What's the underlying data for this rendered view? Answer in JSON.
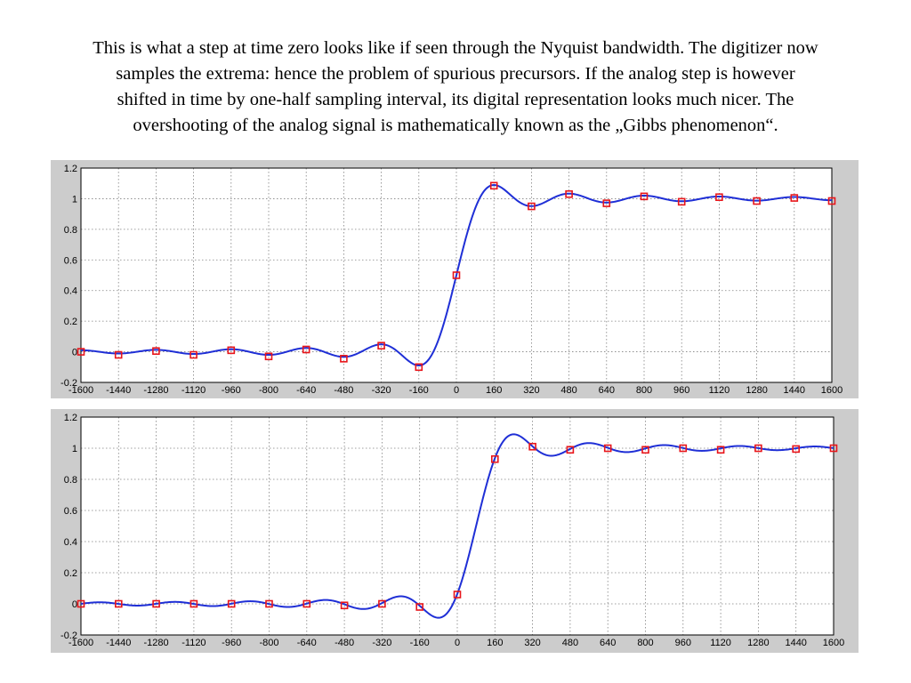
{
  "caption": {
    "lines": [
      "This is what a step at time zero looks like if seen through the Nyquist bandwidth. The digitizer now",
      "samples the extrema: hence the problem of spurious precursors. If the analog step is however",
      "shifted in time by one-half sampling interval, its digital representation looks much nicer. The",
      "overshooting of the analog signal is mathematically  known as the „Gibbs phenomenon“."
    ]
  },
  "colors": {
    "curve": "#1f2fd6",
    "marker": "#e8161b",
    "panel": "#cccccc",
    "grid": "#808080"
  },
  "chart_data": [
    {
      "type": "line",
      "title": "",
      "xlabel": "",
      "ylabel": "",
      "xlim": [
        -1600,
        1600
      ],
      "ylim": [
        -0.2,
        1.2
      ],
      "xticks": [
        "-1600",
        "-1440",
        "-1280",
        "-1120",
        "-960",
        "-800",
        "-640",
        "-480",
        "-320",
        "-160",
        "0",
        "160",
        "320",
        "480",
        "640",
        "800",
        "960",
        "1120",
        "1280",
        "1440",
        "1600"
      ],
      "yticks": [
        "-0.2",
        "0",
        "0.2",
        "0.4",
        "0.6",
        "0.8",
        "1",
        "1.2"
      ],
      "grid": true,
      "samples": {
        "x": [
          -1600,
          -1440,
          -1280,
          -1120,
          -960,
          -800,
          -640,
          -480,
          -320,
          -160,
          0,
          160,
          320,
          480,
          640,
          800,
          960,
          1120,
          1280,
          1440,
          1600
        ],
        "y": [
          0,
          -0.02,
          0.005,
          -0.02,
          0.01,
          -0.03,
          0.015,
          -0.045,
          0.04,
          -0.1,
          0.5,
          1.085,
          0.95,
          1.03,
          0.97,
          1.015,
          0.98,
          1.01,
          0.985,
          1.005,
          0.985
        ]
      },
      "curve_shift": 0
    },
    {
      "type": "line",
      "title": "",
      "xlabel": "",
      "ylabel": "",
      "xlim": [
        -1600,
        1600
      ],
      "ylim": [
        -0.2,
        1.2
      ],
      "xticks": [
        "-1600",
        "-1440",
        "-1280",
        "-1120",
        "-960",
        "-800",
        "-640",
        "-480",
        "-320",
        "-160",
        "0",
        "160",
        "320",
        "480",
        "640",
        "800",
        "960",
        "1120",
        "1280",
        "1440",
        "1600"
      ],
      "yticks": [
        "-0.2",
        "0",
        "0.2",
        "0.4",
        "0.6",
        "0.8",
        "1",
        "1.2"
      ],
      "grid": true,
      "samples": {
        "x": [
          -1600,
          -1440,
          -1280,
          -1120,
          -960,
          -800,
          -640,
          -480,
          -320,
          -160,
          0,
          160,
          320,
          480,
          640,
          800,
          960,
          1120,
          1280,
          1440,
          1600
        ],
        "y": [
          0,
          0,
          0,
          0,
          0,
          0,
          0,
          -0.01,
          0,
          -0.02,
          0.06,
          0.93,
          1.01,
          0.99,
          1.0,
          0.99,
          1.0,
          0.99,
          1.0,
          0.995,
          1.0
        ]
      },
      "curve_shift": 80
    }
  ]
}
